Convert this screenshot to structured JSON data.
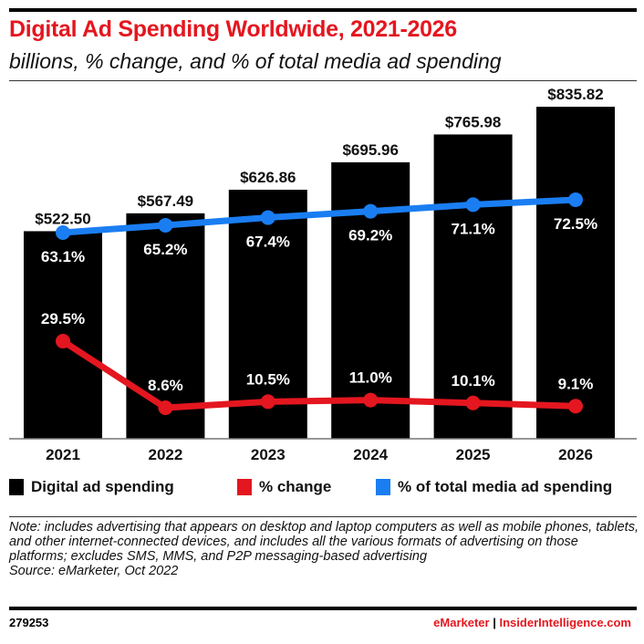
{
  "title": "Digital Ad Spending Worldwide, 2021-2026",
  "subtitle": "billions, % change, and % of total media ad spending",
  "chart_data": {
    "type": "bar",
    "categories": [
      "2021",
      "2022",
      "2023",
      "2024",
      "2025",
      "2026"
    ],
    "series": [
      {
        "name": "Digital ad spending",
        "type": "bar",
        "color": "#000000",
        "values": [
          522.5,
          567.49,
          626.86,
          695.96,
          765.98,
          835.82
        ],
        "labels": [
          "$522.50",
          "$567.49",
          "$626.86",
          "$695.96",
          "$765.98",
          "$835.82"
        ]
      },
      {
        "name": "% change",
        "type": "line",
        "color": "#e4161f",
        "values": [
          29.5,
          8.6,
          10.5,
          11.0,
          10.1,
          9.1
        ],
        "labels": [
          "29.5%",
          "8.6%",
          "10.5%",
          "11.0%",
          "10.1%",
          "9.1%"
        ]
      },
      {
        "name": "% of total media ad spending",
        "type": "line",
        "color": "#1a7ef2",
        "values": [
          63.1,
          65.2,
          67.4,
          69.2,
          71.1,
          72.5
        ],
        "labels": [
          "63.1%",
          "65.2%",
          "67.4%",
          "69.2%",
          "71.1%",
          "72.5%"
        ]
      }
    ],
    "grid": false,
    "legend_placement": "bottom"
  },
  "legend": [
    "Digital ad spending",
    "% change",
    "% of total media ad spending"
  ],
  "note": "Note: includes advertising that appears on desktop and laptop computers as well as mobile phones, tablets, and other internet-connected devices, and includes all the various formats of advertising on those platforms; excludes SMS, MMS, and P2P messaging-based advertising",
  "source": "Source: eMarketer, Oct 2022",
  "chart_id": "279253",
  "brand": {
    "emarketer": "eMarketer",
    "separator": "|",
    "site": "InsiderIntelligence.com"
  }
}
